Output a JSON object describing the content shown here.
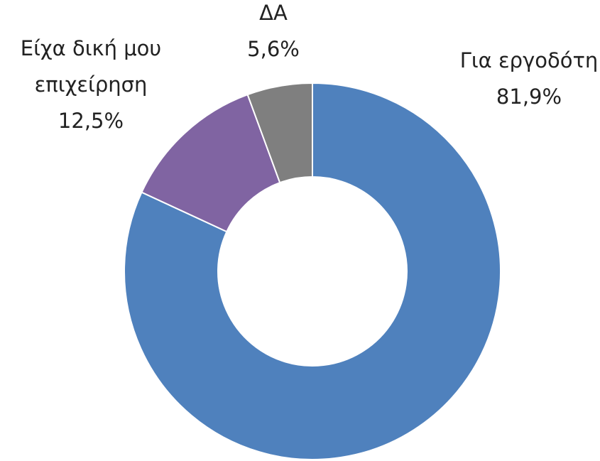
{
  "chart_data": {
    "type": "donut",
    "categories": [
      "Για εργοδότη",
      "Είχα δική μου επιχείρηση",
      "ΔΑ"
    ],
    "values": [
      81.9,
      12.5,
      5.6
    ],
    "value_labels": [
      "81,9%",
      "12,5%",
      "5,6%"
    ],
    "colors": [
      "#4f81bd",
      "#8064a2",
      "#7f7f7f"
    ]
  }
}
